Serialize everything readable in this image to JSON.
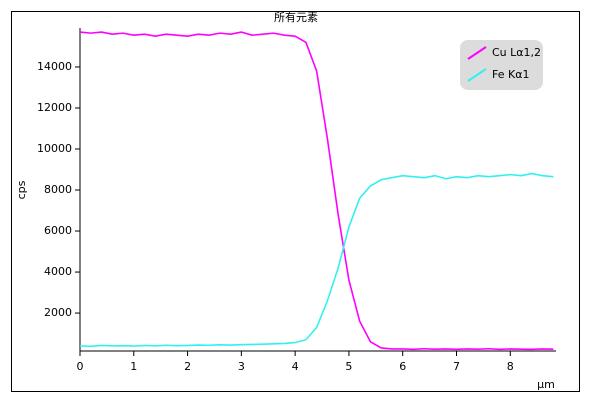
{
  "chart_data": {
    "type": "line",
    "title": "所有元素",
    "x_label": "µm",
    "y_label": "cps",
    "x": [
      0,
      0.2,
      0.4,
      0.6,
      0.8,
      1,
      1.2,
      1.4,
      1.6,
      1.8,
      2,
      2.2,
      2.4,
      2.6,
      2.8,
      3,
      3.2,
      3.4,
      3.6,
      3.8,
      4,
      4.2,
      4.4,
      4.6,
      4.8,
      5,
      5.2,
      5.4,
      5.6,
      5.8,
      6,
      6.2,
      6.4,
      6.6,
      6.8,
      7,
      7.2,
      7.4,
      7.6,
      7.8,
      8,
      8.2,
      8.4,
      8.6,
      8.8
    ],
    "series": [
      {
        "name": "Cu Lα1,2",
        "color": "#ff00ff",
        "values": [
          15700,
          15650,
          15700,
          15600,
          15650,
          15550,
          15600,
          15500,
          15600,
          15550,
          15500,
          15600,
          15550,
          15650,
          15600,
          15700,
          15550,
          15600,
          15650,
          15550,
          15500,
          15200,
          13800,
          10500,
          6800,
          3600,
          1600,
          600,
          300,
          250,
          250,
          230,
          260,
          240,
          250,
          230,
          250,
          240,
          260,
          230,
          250,
          240,
          230,
          250,
          240
        ]
      },
      {
        "name": "Fe Kα1",
        "color": "#33f0f0",
        "values": [
          400,
          380,
          420,
          400,
          410,
          390,
          420,
          400,
          430,
          410,
          420,
          440,
          430,
          450,
          440,
          460,
          470,
          480,
          500,
          520,
          560,
          700,
          1300,
          2600,
          4200,
          6200,
          7600,
          8200,
          8500,
          8600,
          8700,
          8650,
          8600,
          8700,
          8550,
          8650,
          8600,
          8700,
          8650,
          8700,
          8750,
          8700,
          8800,
          8700,
          8650
        ]
      }
    ],
    "xlim": [
      0,
      8.85
    ],
    "ylim": [
      150,
      15900
    ],
    "xticks": [
      0,
      1,
      2,
      3,
      4,
      5,
      6,
      7,
      8
    ],
    "yticks": [
      2000,
      4000,
      6000,
      8000,
      10000,
      12000,
      14000
    ],
    "legend": "upper-right"
  }
}
